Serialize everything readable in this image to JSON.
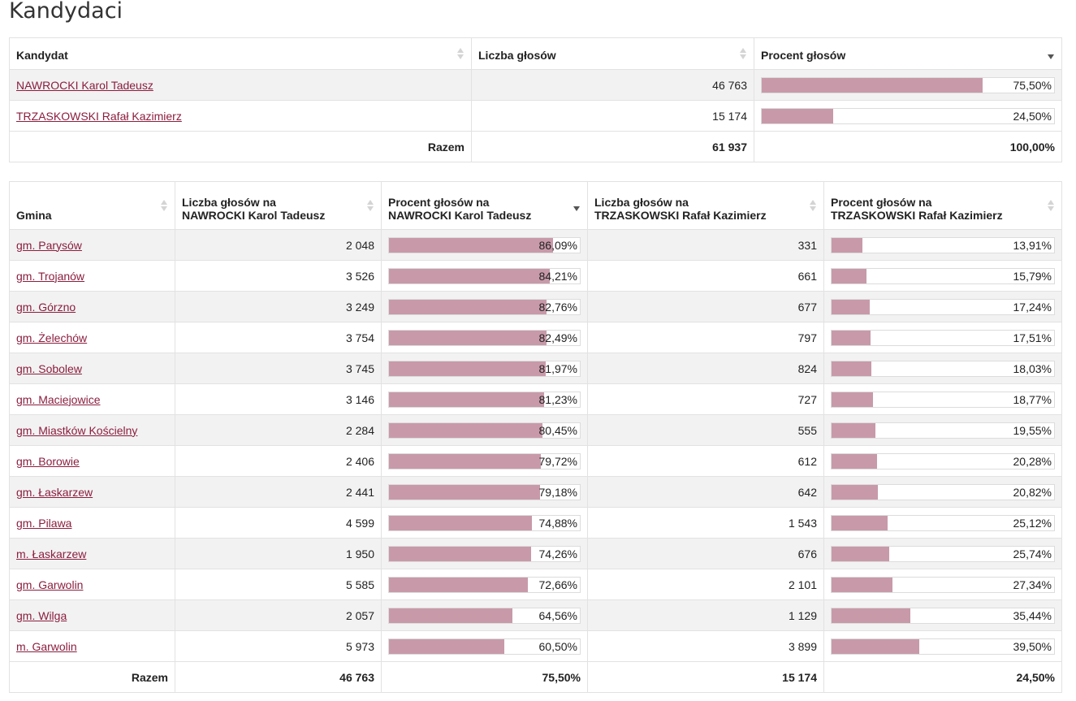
{
  "title": "Kandydaci",
  "candidates_table": {
    "headers": [
      "Kandydat",
      "Liczba głosów",
      "Procent głosów"
    ],
    "rows": [
      {
        "name": "NAWROCKI Karol Tadeusz",
        "votes": "46 763",
        "percent": "75,50%",
        "fraction": 0.755
      },
      {
        "name": "TRZASKOWSKI Rafał Kazimierz",
        "votes": "15 174",
        "percent": "24,50%",
        "fraction": 0.245
      }
    ],
    "total": {
      "label": "Razem",
      "votes": "61 937",
      "percent": "100,00%"
    }
  },
  "gmina_table": {
    "headers": {
      "gmina": "Gmina",
      "votes_a_l1": "Liczba głosów na",
      "votes_a_l2": "NAWROCKI Karol Tadeusz",
      "pct_a_l1": "Procent głosów na",
      "pct_a_l2": "NAWROCKI Karol Tadeusz",
      "votes_b_l1": "Liczba głosów na",
      "votes_b_l2": "TRZASKOWSKI Rafał Kazimierz",
      "pct_b_l1": "Procent głosów na",
      "pct_b_l2": "TRZASKOWSKI Rafał Kazimierz"
    },
    "rows": [
      {
        "gmina": "gm. Parysów",
        "va": "2 048",
        "pa": "86,09%",
        "fa": 0.8609,
        "vb": "331",
        "pb": "13,91%",
        "fb": 0.1391
      },
      {
        "gmina": "gm. Trojanów",
        "va": "3 526",
        "pa": "84,21%",
        "fa": 0.8421,
        "vb": "661",
        "pb": "15,79%",
        "fb": 0.1579
      },
      {
        "gmina": "gm. Górzno",
        "va": "3 249",
        "pa": "82,76%",
        "fa": 0.8276,
        "vb": "677",
        "pb": "17,24%",
        "fb": 0.1724
      },
      {
        "gmina": "gm. Żelechów",
        "va": "3 754",
        "pa": "82,49%",
        "fa": 0.8249,
        "vb": "797",
        "pb": "17,51%",
        "fb": 0.1751
      },
      {
        "gmina": "gm. Sobolew",
        "va": "3 745",
        "pa": "81,97%",
        "fa": 0.8197,
        "vb": "824",
        "pb": "18,03%",
        "fb": 0.1803
      },
      {
        "gmina": "gm. Maciejowice",
        "va": "3 146",
        "pa": "81,23%",
        "fa": 0.8123,
        "vb": "727",
        "pb": "18,77%",
        "fb": 0.1877
      },
      {
        "gmina": "gm. Miastków Kościelny",
        "va": "2 284",
        "pa": "80,45%",
        "fa": 0.8045,
        "vb": "555",
        "pb": "19,55%",
        "fb": 0.1955
      },
      {
        "gmina": "gm. Borowie",
        "va": "2 406",
        "pa": "79,72%",
        "fa": 0.7972,
        "vb": "612",
        "pb": "20,28%",
        "fb": 0.2028
      },
      {
        "gmina": "gm. Łaskarzew",
        "va": "2 441",
        "pa": "79,18%",
        "fa": 0.7918,
        "vb": "642",
        "pb": "20,82%",
        "fb": 0.2082
      },
      {
        "gmina": "gm. Pilawa",
        "va": "4 599",
        "pa": "74,88%",
        "fa": 0.7488,
        "vb": "1 543",
        "pb": "25,12%",
        "fb": 0.2512
      },
      {
        "gmina": "m. Łaskarzew",
        "va": "1 950",
        "pa": "74,26%",
        "fa": 0.7426,
        "vb": "676",
        "pb": "25,74%",
        "fb": 0.2574
      },
      {
        "gmina": "gm. Garwolin",
        "va": "5 585",
        "pa": "72,66%",
        "fa": 0.7266,
        "vb": "2 101",
        "pb": "27,34%",
        "fb": 0.2734
      },
      {
        "gmina": "gm. Wilga",
        "va": "2 057",
        "pa": "64,56%",
        "fa": 0.6456,
        "vb": "1 129",
        "pb": "35,44%",
        "fb": 0.3544
      },
      {
        "gmina": "m. Garwolin",
        "va": "5 973",
        "pa": "60,50%",
        "fa": 0.605,
        "vb": "3 899",
        "pb": "39,50%",
        "fb": 0.395
      }
    ],
    "total": {
      "label": "Razem",
      "va": "46 763",
      "pa": "75,50%",
      "vb": "15 174",
      "pb": "24,50%"
    }
  },
  "colors": {
    "bar_fill": "#c89aa9",
    "link": "#8b1e3f",
    "stripe": "#f2f2f2"
  }
}
